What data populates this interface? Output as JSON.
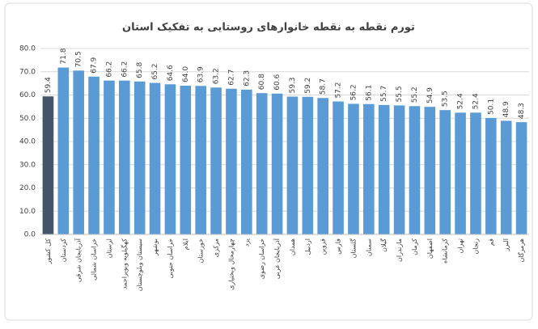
{
  "chart_data": {
    "type": "bar",
    "title": "تورم نقطه به نقطه خانوارهای روستایی به تفکیک استان",
    "categories": [
      "کل کشور",
      "کردستان",
      "آذربایجان شرقی",
      "خراسان شمالی",
      "لرستان",
      "کهگیلویه وبویراحمد",
      "سیستان وبلوچستان",
      "بوشهر",
      "خراسان جنوبی",
      "ایلام",
      "خوزستان",
      "مرکزی",
      "چهارمحال وبختیاری",
      "یزد",
      "خراسان رضوی",
      "آذربایجان غربی",
      "همدان",
      "اردبیل",
      "قزوین",
      "فارس",
      "گلستان",
      "سمنان",
      "گیلان",
      "مازندران",
      "کرمان",
      "اصفهان",
      "کرمانشاه",
      "تهران",
      "زنجان",
      "قم",
      "البرز",
      "هرمزگان"
    ],
    "values": [
      59.4,
      71.8,
      70.5,
      67.9,
      66.2,
      66.2,
      65.8,
      65.2,
      64.6,
      64.0,
      63.9,
      63.2,
      62.7,
      62.3,
      60.8,
      60.6,
      59.3,
      59.2,
      58.7,
      57.2,
      56.2,
      56.1,
      55.7,
      55.5,
      55.2,
      54.9,
      53.5,
      52.4,
      52.4,
      50.1,
      48.9,
      48.3
    ],
    "value_labels": [
      "59.4",
      "71.8",
      "70.5",
      "67.9",
      "66.2",
      "66.2",
      "65.8",
      "65.2",
      "64.6",
      "64.0",
      "63.9",
      "63.2",
      "62.7",
      "62.3",
      "60.8",
      "60.6",
      "59.3",
      "59.2",
      "58.7",
      "57.2",
      "56.2",
      "56.1",
      "55.7",
      "55.5",
      "55.2",
      "54.9",
      "53.5",
      "52.4",
      "52.4",
      "50.1",
      "48.9",
      "48.3"
    ],
    "colors": [
      "#44546a",
      "#5b9bd5",
      "#5b9bd5",
      "#5b9bd5",
      "#5b9bd5",
      "#5b9bd5",
      "#5b9bd5",
      "#5b9bd5",
      "#5b9bd5",
      "#5b9bd5",
      "#5b9bd5",
      "#5b9bd5",
      "#5b9bd5",
      "#5b9bd5",
      "#5b9bd5",
      "#5b9bd5",
      "#5b9bd5",
      "#5b9bd5",
      "#5b9bd5",
      "#5b9bd5",
      "#5b9bd5",
      "#5b9bd5",
      "#5b9bd5",
      "#5b9bd5",
      "#5b9bd5",
      "#5b9bd5",
      "#5b9bd5",
      "#5b9bd5",
      "#5b9bd5",
      "#5b9bd5",
      "#5b9bd5",
      "#5b9bd5"
    ],
    "ylim": [
      0,
      80
    ],
    "yticks": [
      {
        "value": 0,
        "label": "0.0"
      },
      {
        "value": 10,
        "label": "10.0"
      },
      {
        "value": 20,
        "label": "20.0"
      },
      {
        "value": 30,
        "label": "30.0"
      },
      {
        "value": 40,
        "label": "40.0"
      },
      {
        "value": 50,
        "label": "50.0"
      },
      {
        "value": 60,
        "label": "60.0"
      },
      {
        "value": 70,
        "label": "70.0"
      },
      {
        "value": 80,
        "label": "80.0"
      }
    ],
    "grid": true
  }
}
